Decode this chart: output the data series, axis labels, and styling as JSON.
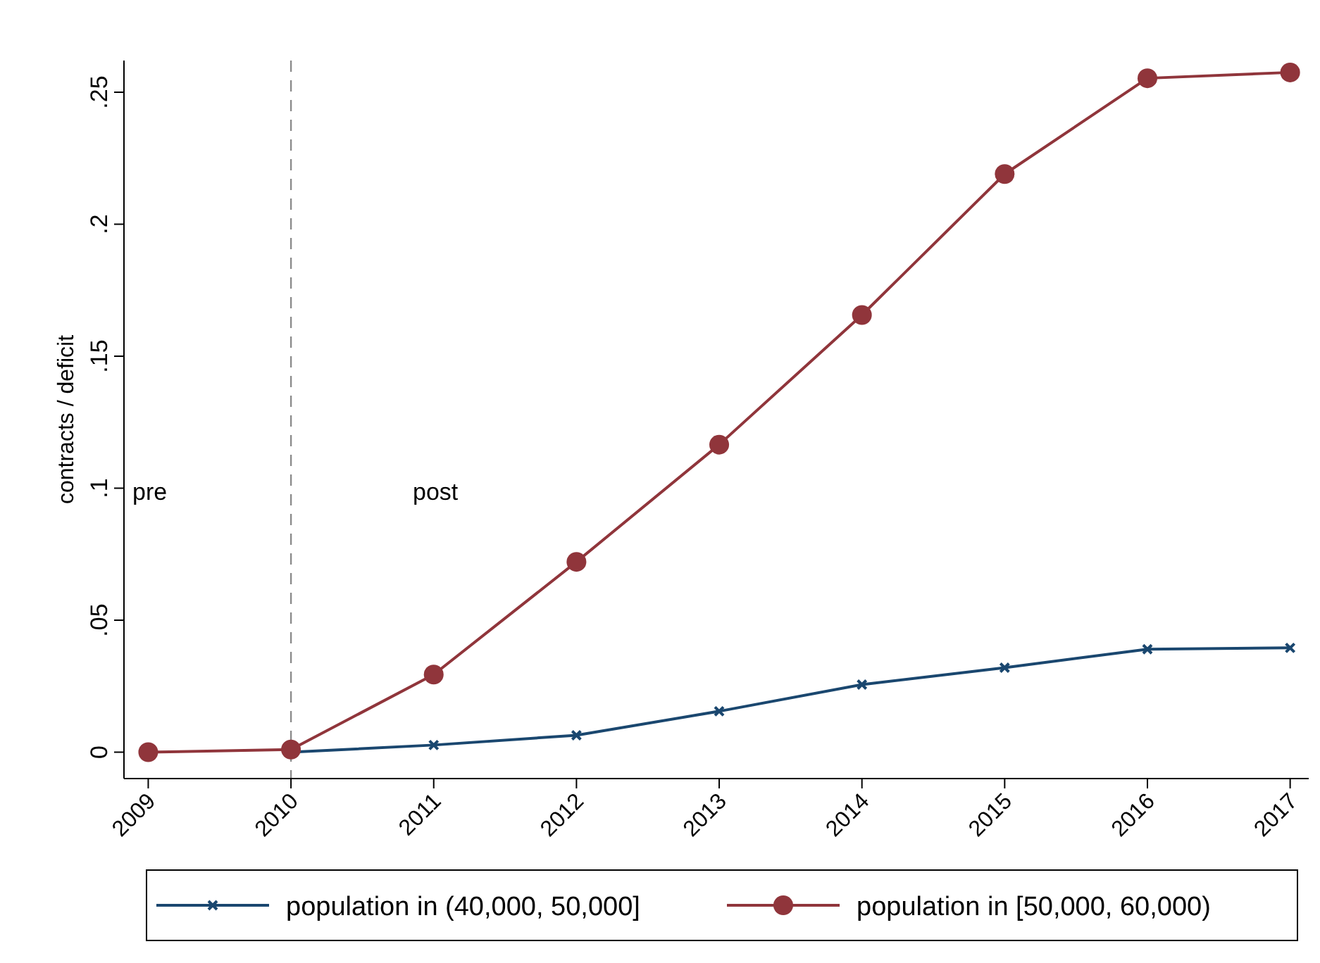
{
  "chart_data": {
    "type": "line",
    "ylabel": "contracts / deficit",
    "x": [
      2009,
      2010,
      2011,
      2012,
      2013,
      2014,
      2015,
      2016,
      2017
    ],
    "xlim": [
      2008.83,
      2017.14
    ],
    "xticks": [
      2009,
      2010,
      2011,
      2012,
      2013,
      2014,
      2015,
      2016,
      2017
    ],
    "ylim": [
      -0.01,
      0.262
    ],
    "yticks": [
      {
        "value": 0,
        "label": "0"
      },
      {
        "value": 0.05,
        "label": ".05"
      },
      {
        "value": 0.1,
        "label": ".1"
      },
      {
        "value": 0.15,
        "label": ".15"
      },
      {
        "value": 0.2,
        "label": ".2"
      },
      {
        "value": 0.25,
        "label": ".25"
      }
    ],
    "grid": false,
    "legend": "bottom",
    "line_style": "solid",
    "series": [
      {
        "name": "population in (40,000, 50,000]",
        "color": "#1a476f",
        "marker": "cross",
        "values": [
          null,
          0,
          0.0027,
          0.0064,
          0.0155,
          0.0256,
          0.032,
          0.039,
          0.0395
        ]
      },
      {
        "name": "population in [50,000, 60,000)",
        "color": "#90353b",
        "marker": "circle",
        "values": [
          0,
          0.001,
          0.0294,
          0.0721,
          0.1165,
          0.1656,
          0.219,
          0.2553,
          0.2575
        ]
      }
    ],
    "ref_lines": [
      {
        "axis": "x",
        "value": 2010,
        "color": "#8c8c8c",
        "line_style": "dashed"
      }
    ],
    "annotations": [
      "pre",
      "post"
    ]
  }
}
